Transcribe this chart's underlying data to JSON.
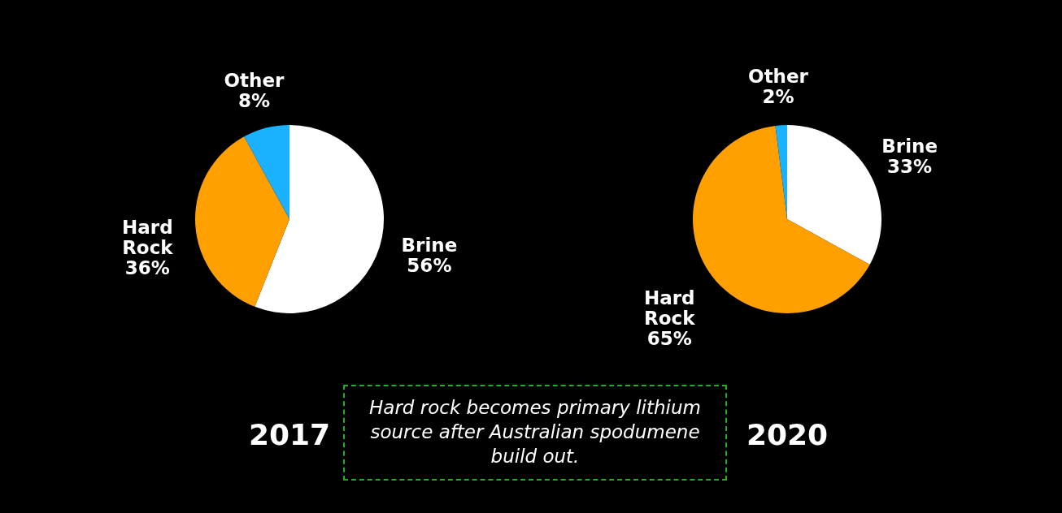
{
  "chart_data": [
    {
      "type": "pie",
      "title": "2017",
      "categories": [
        "Brine",
        "Hard Rock",
        "Other"
      ],
      "values": [
        56,
        36,
        8
      ],
      "value_labels": [
        "56%",
        "36%",
        "8%"
      ],
      "colors": [
        "#ffffff",
        "#ffa000",
        "#1ab2ff"
      ],
      "annotations": [
        "Hard rock becomes primary lithium source after Australian spodumene build out."
      ]
    },
    {
      "type": "pie",
      "title": "2020",
      "categories": [
        "Brine",
        "Hard Rock",
        "Other"
      ],
      "values": [
        33,
        65,
        2
      ],
      "value_labels": [
        "33%",
        "65%",
        "2%"
      ],
      "colors": [
        "#ffffff",
        "#ffa000",
        "#1ab2ff"
      ]
    }
  ]
}
